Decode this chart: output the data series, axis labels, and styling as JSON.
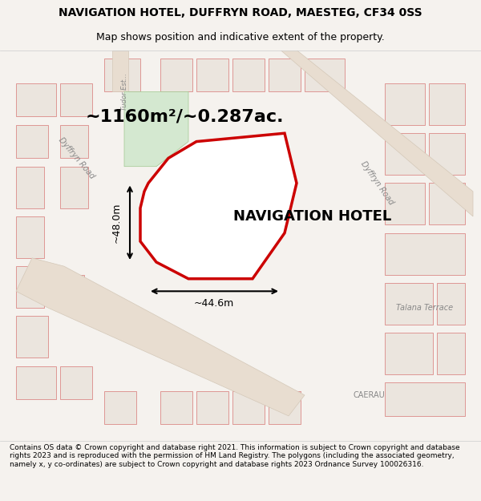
{
  "title_line1": "NAVIGATION HOTEL, DUFFRYN ROAD, MAESTEG, CF34 0SS",
  "title_line2": "Map shows position and indicative extent of the property.",
  "area_text": "~1160m²/~0.287ac.",
  "label_text": "NAVIGATION HOTEL",
  "dim_vertical": "~48.0m",
  "dim_horizontal": "~44.6m",
  "footer_text": "Contains OS data © Crown copyright and database right 2021. This information is subject to Crown copyright and database rights 2023 and is reproduced with the permission of HM Land Registry. The polygons (including the associated geometry, namely x, y co-ordinates) are subject to Crown copyright and database rights 2023 Ordnance Survey 100026316.",
  "bg_color": "#f0ede8",
  "map_bg": "#f5f2ee",
  "plot_fill": "#ffffff",
  "plot_stroke": "#cc0000",
  "road_colors": [
    "#e8d5c8",
    "#f0e8e0"
  ],
  "green_patch": "#d4e8d0",
  "building_fill": "#e8e0d8",
  "building_stroke": "#cc4444"
}
